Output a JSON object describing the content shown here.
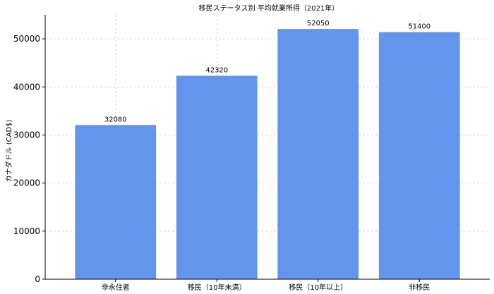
{
  "chart_data": {
    "type": "bar",
    "title": "移民ステータス別 平均就業所得（2021年）",
    "ylabel": "カナダドル (CAD$)",
    "xlabel": "",
    "categories": [
      "非永住者",
      "移民（10年未満）",
      "移民（10年以上）",
      "非移民"
    ],
    "values": [
      32080,
      42320,
      52050,
      51400
    ],
    "ylim": [
      0,
      55000
    ],
    "yticks": [
      0,
      10000,
      20000,
      30000,
      40000,
      50000
    ],
    "grid": true,
    "bar_color": "#6495ED"
  }
}
